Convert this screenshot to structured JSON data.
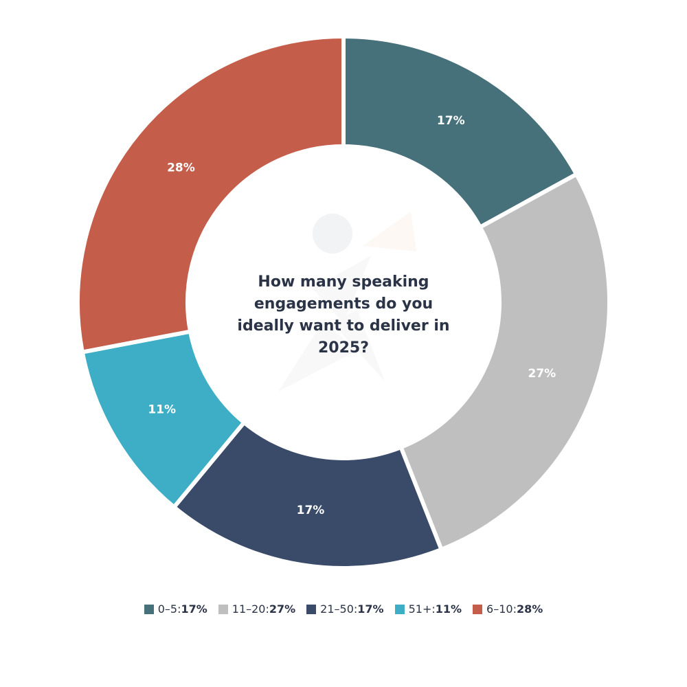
{
  "chart_data": {
    "type": "pie",
    "title": "How many speaking engagements do you ideally want to deliver in 2025?",
    "donut": true,
    "slices": [
      {
        "label": "0–5",
        "value": 17,
        "display": "17%",
        "color": "#46707a"
      },
      {
        "label": "11–20",
        "value": 27,
        "display": "27%",
        "color": "#bfbfbf"
      },
      {
        "label": "21–50",
        "value": 17,
        "display": "17%",
        "color": "#3a4a69"
      },
      {
        "label": "51+",
        "value": 11,
        "display": "11%",
        "color": "#3eaec6"
      },
      {
        "label": "6–10",
        "value": 28,
        "display": "28%",
        "color": "#c45d4a"
      }
    ],
    "legend_placement": "bottom"
  }
}
